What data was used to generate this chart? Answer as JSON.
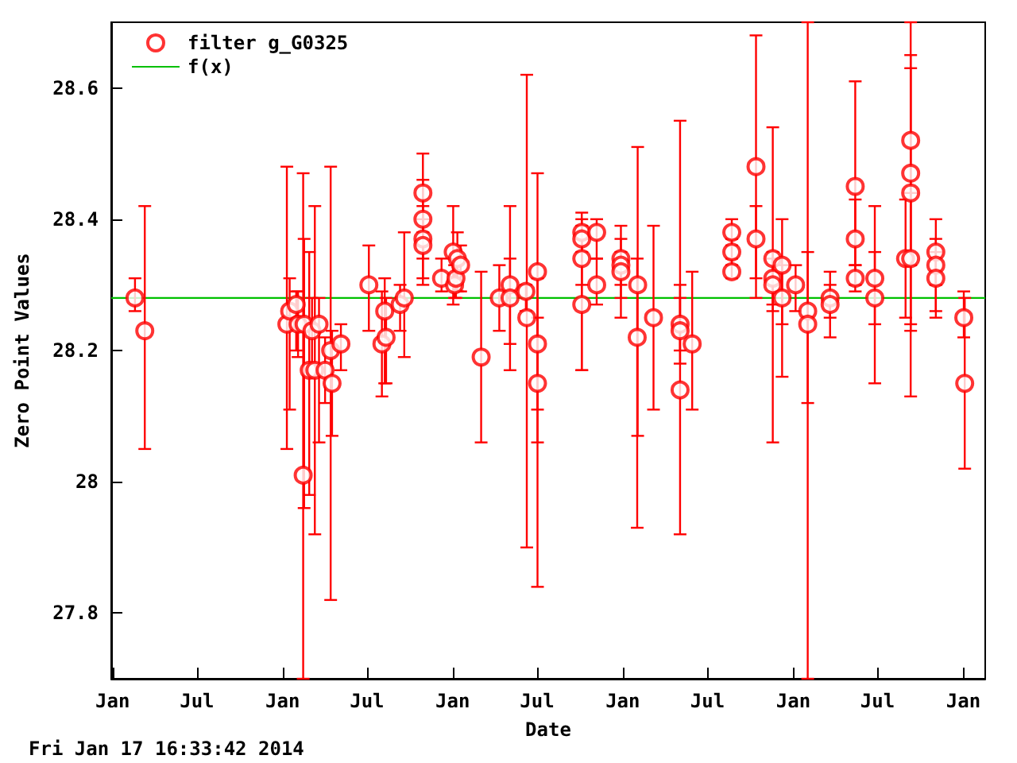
{
  "chart_data": {
    "type": "scatter",
    "xlabel": "Date",
    "ylabel": "Zero Point Values",
    "annotations": [
      "Fri Jan 17 16:33:42 2014"
    ],
    "xlim": [
      "2008-12-29",
      "2014-02-17"
    ],
    "xticks": [
      {
        "value": "2009-01",
        "label": "Jan"
      },
      {
        "value": "2009-07",
        "label": "Jul"
      },
      {
        "value": "2010-01",
        "label": "Jan"
      },
      {
        "value": "2010-07",
        "label": "Jul"
      },
      {
        "value": "2011-01",
        "label": "Jan"
      },
      {
        "value": "2011-07",
        "label": "Jul"
      },
      {
        "value": "2012-01",
        "label": "Jan"
      },
      {
        "value": "2012-07",
        "label": "Jul"
      },
      {
        "value": "2013-01",
        "label": "Jan"
      },
      {
        "value": "2013-07",
        "label": "Jul"
      },
      {
        "value": "2014-01",
        "label": "Jan"
      }
    ],
    "ylim": [
      27.7,
      28.7
    ],
    "yticks": [
      27.8,
      28,
      28.2,
      28.4,
      28.6
    ],
    "grid": false,
    "legend": "top left",
    "series": [
      {
        "name": "filter g_G0325",
        "marker": "circle",
        "color": "#ff0000",
        "x": [
          "2009-02-18",
          "2009-03-11",
          "2010-01-10",
          "2010-01-16",
          "2010-01-30",
          "2010-02-03",
          "2010-02-14",
          "2010-02-16",
          "2010-02-27",
          "2010-03-05",
          "2010-03-11",
          "2010-03-20",
          "2010-04-02",
          "2010-04-14",
          "2010-04-17",
          "2010-05-06",
          "2010-07-05",
          "2010-08-02",
          "2010-08-08",
          "2010-08-11",
          "2010-09-10",
          "2010-09-19",
          "2010-10-29",
          "2010-10-29",
          "2010-10-29",
          "2010-10-29",
          "2010-12-08",
          "2011-01-02",
          "2011-01-05",
          "2011-01-08",
          "2011-01-11",
          "2011-01-18",
          "2011-03-03",
          "2011-04-11",
          "2011-05-04",
          "2011-05-04",
          "2011-06-07",
          "2011-06-09",
          "2011-07-02",
          "2011-07-02",
          "2011-07-02",
          "2011-10-05",
          "2011-10-05",
          "2011-10-05",
          "2011-10-05",
          "2011-11-06",
          "2011-11-06",
          "2011-12-28",
          "2011-12-28",
          "2011-12-28",
          "2012-02-02",
          "2012-02-01",
          "2012-03-07",
          "2012-05-03",
          "2012-05-03",
          "2012-05-03",
          "2012-05-29",
          "2012-08-22",
          "2012-08-22",
          "2012-08-22",
          "2012-10-13",
          "2012-10-13",
          "2012-11-18",
          "2012-11-18",
          "2012-11-18",
          "2012-12-08",
          "2012-12-08",
          "2013-01-06",
          "2013-02-01",
          "2013-02-01",
          "2013-03-21",
          "2013-03-21",
          "2013-05-14",
          "2013-05-14",
          "2013-05-14",
          "2013-06-25",
          "2013-06-25",
          "2013-08-30",
          "2013-09-10",
          "2013-09-10",
          "2013-09-10",
          "2013-09-10",
          "2013-11-03",
          "2013-11-03",
          "2013-11-03",
          "2014-01-02",
          "2014-01-04"
        ],
        "values": [
          28.28,
          28.23,
          28.24,
          28.26,
          28.27,
          28.24,
          28.01,
          28.24,
          28.17,
          28.23,
          28.17,
          28.24,
          28.17,
          28.2,
          28.15,
          28.21,
          28.3,
          28.21,
          28.26,
          28.22,
          28.27,
          28.28,
          28.44,
          28.4,
          28.37,
          28.36,
          28.31,
          28.35,
          28.3,
          28.31,
          28.34,
          28.33,
          28.19,
          28.28,
          28.3,
          28.28,
          28.29,
          28.25,
          28.32,
          28.21,
          28.15,
          28.38,
          28.37,
          28.34,
          28.27,
          28.38,
          28.3,
          28.34,
          28.33,
          28.32,
          28.3,
          28.22,
          28.25,
          28.24,
          28.23,
          28.14,
          28.21,
          28.38,
          28.35,
          28.32,
          28.48,
          28.37,
          28.34,
          28.31,
          28.3,
          28.33,
          28.28,
          28.3,
          28.26,
          28.24,
          28.28,
          28.27,
          28.45,
          28.37,
          28.31,
          28.31,
          28.28,
          28.34,
          28.52,
          28.47,
          28.44,
          28.34,
          28.35,
          28.33,
          28.31,
          28.25,
          28.15
        ],
        "errors": [
          [
            28.26,
            28.31
          ],
          [
            28.05,
            28.42
          ],
          [
            28.05,
            28.48
          ],
          [
            28.11,
            28.31
          ],
          [
            28.2,
            28.29
          ],
          [
            28.19,
            28.29
          ],
          [
            27.7,
            28.47
          ],
          [
            27.96,
            28.37
          ],
          [
            27.98,
            28.35
          ],
          [
            28.18,
            28.28
          ],
          [
            27.92,
            28.42
          ],
          [
            28.06,
            28.28
          ],
          [
            28.12,
            28.22
          ],
          [
            27.82,
            28.48
          ],
          [
            28.07,
            28.23
          ],
          [
            28.17,
            28.24
          ],
          [
            28.23,
            28.36
          ],
          [
            28.13,
            28.29
          ],
          [
            28.15,
            28.31
          ],
          [
            28.15,
            28.28
          ],
          [
            28.23,
            28.3
          ],
          [
            28.19,
            28.38
          ],
          [
            28.38,
            28.5
          ],
          [
            28.34,
            28.46
          ],
          [
            28.3,
            28.42
          ],
          [
            28.31,
            28.4
          ],
          [
            28.29,
            28.34
          ],
          [
            28.27,
            28.42
          ],
          [
            28.28,
            28.33
          ],
          [
            28.28,
            28.34
          ],
          [
            28.29,
            28.38
          ],
          [
            28.29,
            28.36
          ],
          [
            28.06,
            28.32
          ],
          [
            28.23,
            28.33
          ],
          [
            28.17,
            28.42
          ],
          [
            28.21,
            28.34
          ],
          [
            28.26,
            28.3
          ],
          [
            27.9,
            28.62
          ],
          [
            27.84,
            28.47
          ],
          [
            28.11,
            28.31
          ],
          [
            28.06,
            28.25
          ],
          [
            28.35,
            28.41
          ],
          [
            28.3,
            28.4
          ],
          [
            28.17,
            28.39
          ],
          [
            28.17,
            28.37
          ],
          [
            28.34,
            28.4
          ],
          [
            28.27,
            28.34
          ],
          [
            28.3,
            28.39
          ],
          [
            28.28,
            28.37
          ],
          [
            28.25,
            28.35
          ],
          [
            28.07,
            28.51
          ],
          [
            27.93,
            28.34
          ],
          [
            28.11,
            28.39
          ],
          [
            28.2,
            28.55
          ],
          [
            28.18,
            28.28
          ],
          [
            27.92,
            28.3
          ],
          [
            28.11,
            28.32
          ],
          [
            28.36,
            28.4
          ],
          [
            28.33,
            28.37
          ],
          [
            28.31,
            28.34
          ],
          [
            28.31,
            28.68
          ],
          [
            28.28,
            28.42
          ],
          [
            28.06,
            28.54
          ],
          [
            28.26,
            28.35
          ],
          [
            28.27,
            28.34
          ],
          [
            28.16,
            28.4
          ],
          [
            28.24,
            28.33
          ],
          [
            28.26,
            28.33
          ],
          [
            27.7,
            28.7
          ],
          [
            28.12,
            28.35
          ],
          [
            28.22,
            28.32
          ],
          [
            28.25,
            28.3
          ],
          [
            28.29,
            28.61
          ],
          [
            28.33,
            28.43
          ],
          [
            28.3,
            28.33
          ],
          [
            28.15,
            28.42
          ],
          [
            28.24,
            28.35
          ],
          [
            28.25,
            28.43
          ],
          [
            28.13,
            28.7
          ],
          [
            28.33,
            28.63
          ],
          [
            28.23,
            28.65
          ],
          [
            28.24,
            28.44
          ],
          [
            28.3,
            28.4
          ],
          [
            28.25,
            28.37
          ],
          [
            28.26,
            28.35
          ],
          [
            28.22,
            28.29
          ],
          [
            28.02,
            28.28
          ]
        ]
      },
      {
        "name": "f(x)",
        "type": "line",
        "color": "#00c000",
        "x": [
          "2008-12-29",
          "2014-02-17"
        ],
        "values": [
          28.28,
          28.28
        ]
      }
    ]
  }
}
